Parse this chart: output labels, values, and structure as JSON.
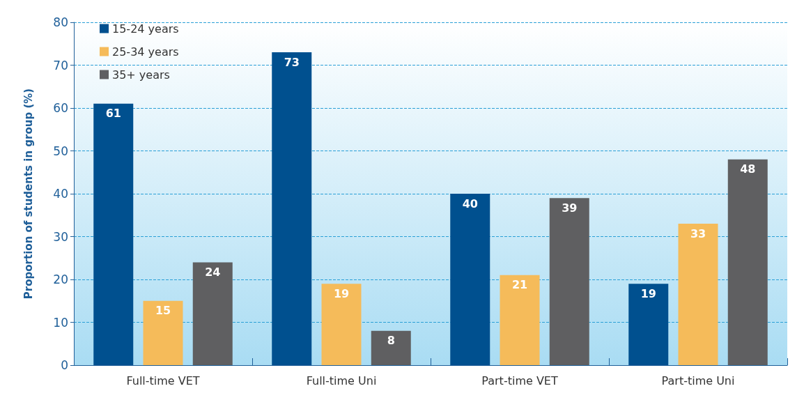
{
  "chart_data": {
    "type": "bar",
    "ylabel": "Proportion of students in group (%)",
    "categories": [
      "Full-time VET",
      "Full-time Uni",
      "Part-time VET",
      "Part-time Uni"
    ],
    "series": [
      {
        "name": "15-24 years",
        "color": "#00508f",
        "values": [
          61,
          73,
          40,
          19
        ]
      },
      {
        "name": "25-34 years",
        "color": "#f5bb5a",
        "values": [
          15,
          19,
          21,
          33
        ]
      },
      {
        "name": "35+ years",
        "color": "#5f5f61",
        "values": [
          24,
          8,
          39,
          48
        ]
      }
    ],
    "ylim": [
      0,
      80
    ],
    "yticks": [
      0,
      10,
      20,
      30,
      40,
      50,
      60,
      70,
      80
    ],
    "grid": "y",
    "legend": "top left",
    "data_labels": true,
    "line_style": "dashed"
  }
}
